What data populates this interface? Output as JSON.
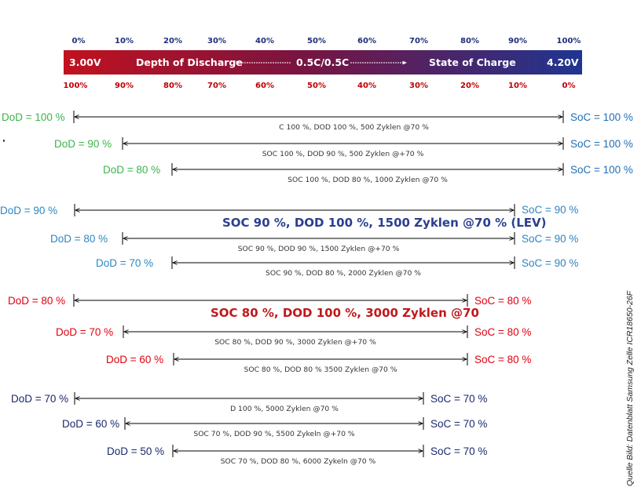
{
  "scale": {
    "top": [
      "0%",
      "10%",
      "20%",
      "30%",
      "40%",
      "50%",
      "60%",
      "70%",
      "80%",
      "90%",
      "100%"
    ],
    "bottom": [
      "100%",
      "90%",
      "80%",
      "70%",
      "60%",
      "50%",
      "40%",
      "30%",
      "20%",
      "10%",
      "0%"
    ],
    "bar": {
      "left_voltage": "3.00V",
      "left_text": "Depth of Discharge",
      "center_text": "0.5C/0.5C",
      "right_text": "State of Charge",
      "right_voltage": "4.20V"
    }
  },
  "groups": [
    {
      "color": "#3cb44b",
      "soc_color": "#1f6fb4",
      "rows": [
        {
          "dod": "DoD = 100 %",
          "soc": "SoC = 100 %",
          "desc": "C 100 %, DOD 100 %, 500 Zyklen @70 %"
        },
        {
          "dod": "DoD = 90 %",
          "soc": "SoC = 100 %",
          "desc": "SOC 100 %, DOD 90 %,   500 Zyklen @+70 %"
        },
        {
          "dod": "DoD = 80 %",
          "soc": "SoC = 100 %",
          "desc": "SOC 100 %, DOD 80 %,  1000 Zyklen @70 %"
        }
      ],
      "highlight": ""
    },
    {
      "color": "#2e86c1",
      "soc_color": "#2e86c1",
      "rows": [
        {
          "dod": "DoD = 90 %",
          "soc": "SoC = 90 %",
          "desc": ""
        },
        {
          "dod": "DoD = 80 %",
          "soc": "SoC = 90 %",
          "desc": "SOC 90 %, DOD 90 %,    1500 Zyklen @+70 %"
        },
        {
          "dod": "DoD = 70 %",
          "soc": "SoC = 90 %",
          "desc": "SOC 90 %, DOD 80 %,    2000 Zyklen @70 %"
        }
      ],
      "highlight": "SOC 90 %, DOD 100 %, 1500 Zyklen @70 % (LEV)",
      "highlight_color": "#2b3f8f"
    },
    {
      "color": "#e0000f",
      "soc_color": "#e0000f",
      "rows": [
        {
          "dod": "DoD = 80 %",
          "soc": "SoC = 80 %",
          "desc": ""
        },
        {
          "dod": "DoD = 70 %",
          "soc": "SoC = 80 %",
          "desc": "SOC 80 %, DOD 90 %, 3000 Zyklen @+70 %"
        },
        {
          "dod": "DoD = 60 %",
          "soc": "SoC = 80 %",
          "desc": "SOC 80 %, DOD 80 % 3500 Zyklen @70 %"
        }
      ],
      "highlight": "SOC 80 %, DOD 100 %, 3000 Zyklen @70",
      "highlight_color": "#c0181c"
    },
    {
      "color": "#1a2a6c",
      "soc_color": "#1a2a6c",
      "rows": [
        {
          "dod": "DoD = 70 %",
          "soc": "SoC = 70 %",
          "desc": "D 100 %, 5000 Zyklen @70 %"
        },
        {
          "dod": "DoD = 60 %",
          "soc": "SoC = 70 %",
          "desc": "SOC 70 %, DOD 90 %, 5500 Zykeln @+70 %"
        },
        {
          "dod": "DoD = 50 %",
          "soc": "SoC = 70 %",
          "desc": "SOC 70 %, DOD 80 %, 6000 Zykeln @70 %"
        }
      ],
      "highlight": ""
    }
  ],
  "bullet": "·",
  "source": "Quelle Bild: Datenblatt Samsung Zelle ICR18650-26F"
}
